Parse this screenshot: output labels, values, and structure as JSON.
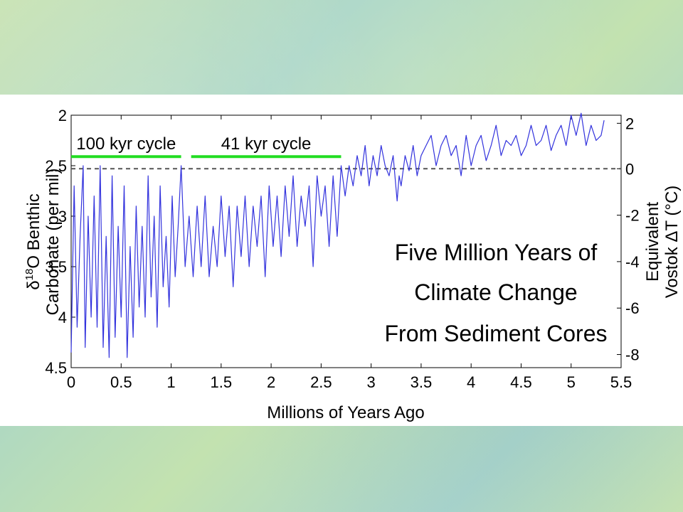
{
  "chart_data": {
    "type": "line",
    "xlabel": "Millions of Years Ago",
    "ylabel_line1": "δ",
    "ylabel_sup": "18",
    "ylabel_rest": "O Benthic",
    "ylabel_line2": "Carbonate (per mil)",
    "y2label_line1": "Equivalent",
    "y2label_line2": "Vostok ΔT (°C)",
    "xlim": [
      0,
      5.5
    ],
    "ylim": [
      4.5,
      2
    ],
    "y_reversed": true,
    "x_ticks": [
      "0",
      "0.5",
      "1",
      "1.5",
      "2",
      "2.5",
      "3",
      "3.5",
      "4",
      "4.5",
      "5",
      "5.5"
    ],
    "y_ticks": [
      "2",
      "2.5",
      "3",
      "3.5",
      "4",
      "4.5"
    ],
    "y2_ticks": [
      "2",
      "0",
      "-2",
      "-4",
      "-6",
      "-8"
    ],
    "y2_tick_positions_delta18O": [
      2.08,
      2.53,
      2.99,
      3.45,
      3.91,
      4.37
    ],
    "reference_line": {
      "y": 2.53,
      "label_y2": "0",
      "style": "dashed",
      "color": "#555555"
    },
    "annotations": [
      {
        "text": "100 kyr cycle",
        "x_start": 0.0,
        "x_end": 1.1,
        "y": 2.41,
        "color": "#22dd22"
      },
      {
        "text": "41 kyr cycle",
        "x_start": 1.2,
        "x_end": 2.7,
        "y": 2.41,
        "color": "#22dd22"
      }
    ],
    "title_lines": [
      "Five Million Years of",
      "Climate Change",
      "From Sediment Cores"
    ],
    "series": [
      {
        "color": "#3333dd",
        "x": [
          0.0,
          0.03,
          0.06,
          0.09,
          0.12,
          0.14,
          0.17,
          0.2,
          0.23,
          0.26,
          0.29,
          0.32,
          0.35,
          0.38,
          0.41,
          0.44,
          0.47,
          0.5,
          0.53,
          0.56,
          0.59,
          0.62,
          0.65,
          0.68,
          0.71,
          0.74,
          0.77,
          0.8,
          0.83,
          0.86,
          0.89,
          0.92,
          0.95,
          0.98,
          1.01,
          1.04,
          1.07,
          1.1,
          1.14,
          1.18,
          1.22,
          1.26,
          1.3,
          1.34,
          1.38,
          1.42,
          1.46,
          1.5,
          1.54,
          1.58,
          1.62,
          1.66,
          1.7,
          1.74,
          1.78,
          1.82,
          1.86,
          1.9,
          1.94,
          1.98,
          2.02,
          2.06,
          2.1,
          2.14,
          2.18,
          2.22,
          2.26,
          2.3,
          2.34,
          2.38,
          2.42,
          2.46,
          2.5,
          2.54,
          2.58,
          2.62,
          2.66,
          2.7,
          2.74,
          2.78,
          2.82,
          2.86,
          2.9,
          2.94,
          2.98,
          3.02,
          3.06,
          3.1,
          3.14,
          3.18,
          3.22,
          3.26,
          3.28,
          3.3,
          3.34,
          3.38,
          3.42,
          3.46,
          3.5,
          3.55,
          3.6,
          3.65,
          3.7,
          3.75,
          3.8,
          3.85,
          3.9,
          3.95,
          4.0,
          4.05,
          4.1,
          4.15,
          4.2,
          4.25,
          4.3,
          4.35,
          4.4,
          4.45,
          4.5,
          4.55,
          4.6,
          4.65,
          4.7,
          4.75,
          4.8,
          4.85,
          4.9,
          4.95,
          5.0,
          5.05,
          5.1,
          5.15,
          5.2,
          5.25,
          5.3,
          5.33
        ],
        "values": [
          4.35,
          2.7,
          4.1,
          3.2,
          2.5,
          4.3,
          3.0,
          4.0,
          2.8,
          4.1,
          2.5,
          4.3,
          3.2,
          4.4,
          2.6,
          4.2,
          3.1,
          4.0,
          2.7,
          4.4,
          3.3,
          4.2,
          2.9,
          3.9,
          3.1,
          4.0,
          2.6,
          3.8,
          3.0,
          4.1,
          2.7,
          3.7,
          3.2,
          3.9,
          2.8,
          3.6,
          3.1,
          2.5,
          3.5,
          3.0,
          3.6,
          2.9,
          3.5,
          2.8,
          3.6,
          3.1,
          3.5,
          2.8,
          3.4,
          2.9,
          3.7,
          2.9,
          3.4,
          2.8,
          3.5,
          2.9,
          3.3,
          2.8,
          3.6,
          2.7,
          3.3,
          2.8,
          3.4,
          2.7,
          3.2,
          2.6,
          3.3,
          2.8,
          3.1,
          2.7,
          3.5,
          2.6,
          3.0,
          2.7,
          3.3,
          2.6,
          3.2,
          2.5,
          2.8,
          2.5,
          2.7,
          2.4,
          2.6,
          2.3,
          2.7,
          2.4,
          2.6,
          2.3,
          2.5,
          2.6,
          2.4,
          2.85,
          2.6,
          2.7,
          2.4,
          2.55,
          2.3,
          2.6,
          2.4,
          2.3,
          2.2,
          2.5,
          2.3,
          2.2,
          2.4,
          2.3,
          2.6,
          2.2,
          2.5,
          2.3,
          2.2,
          2.45,
          2.3,
          2.1,
          2.4,
          2.25,
          2.3,
          2.2,
          2.4,
          2.3,
          2.1,
          2.3,
          2.25,
          2.1,
          2.35,
          2.2,
          2.1,
          2.3,
          2.0,
          2.2,
          1.98,
          2.3,
          2.1,
          2.25,
          2.2,
          2.05
        ]
      }
    ]
  }
}
